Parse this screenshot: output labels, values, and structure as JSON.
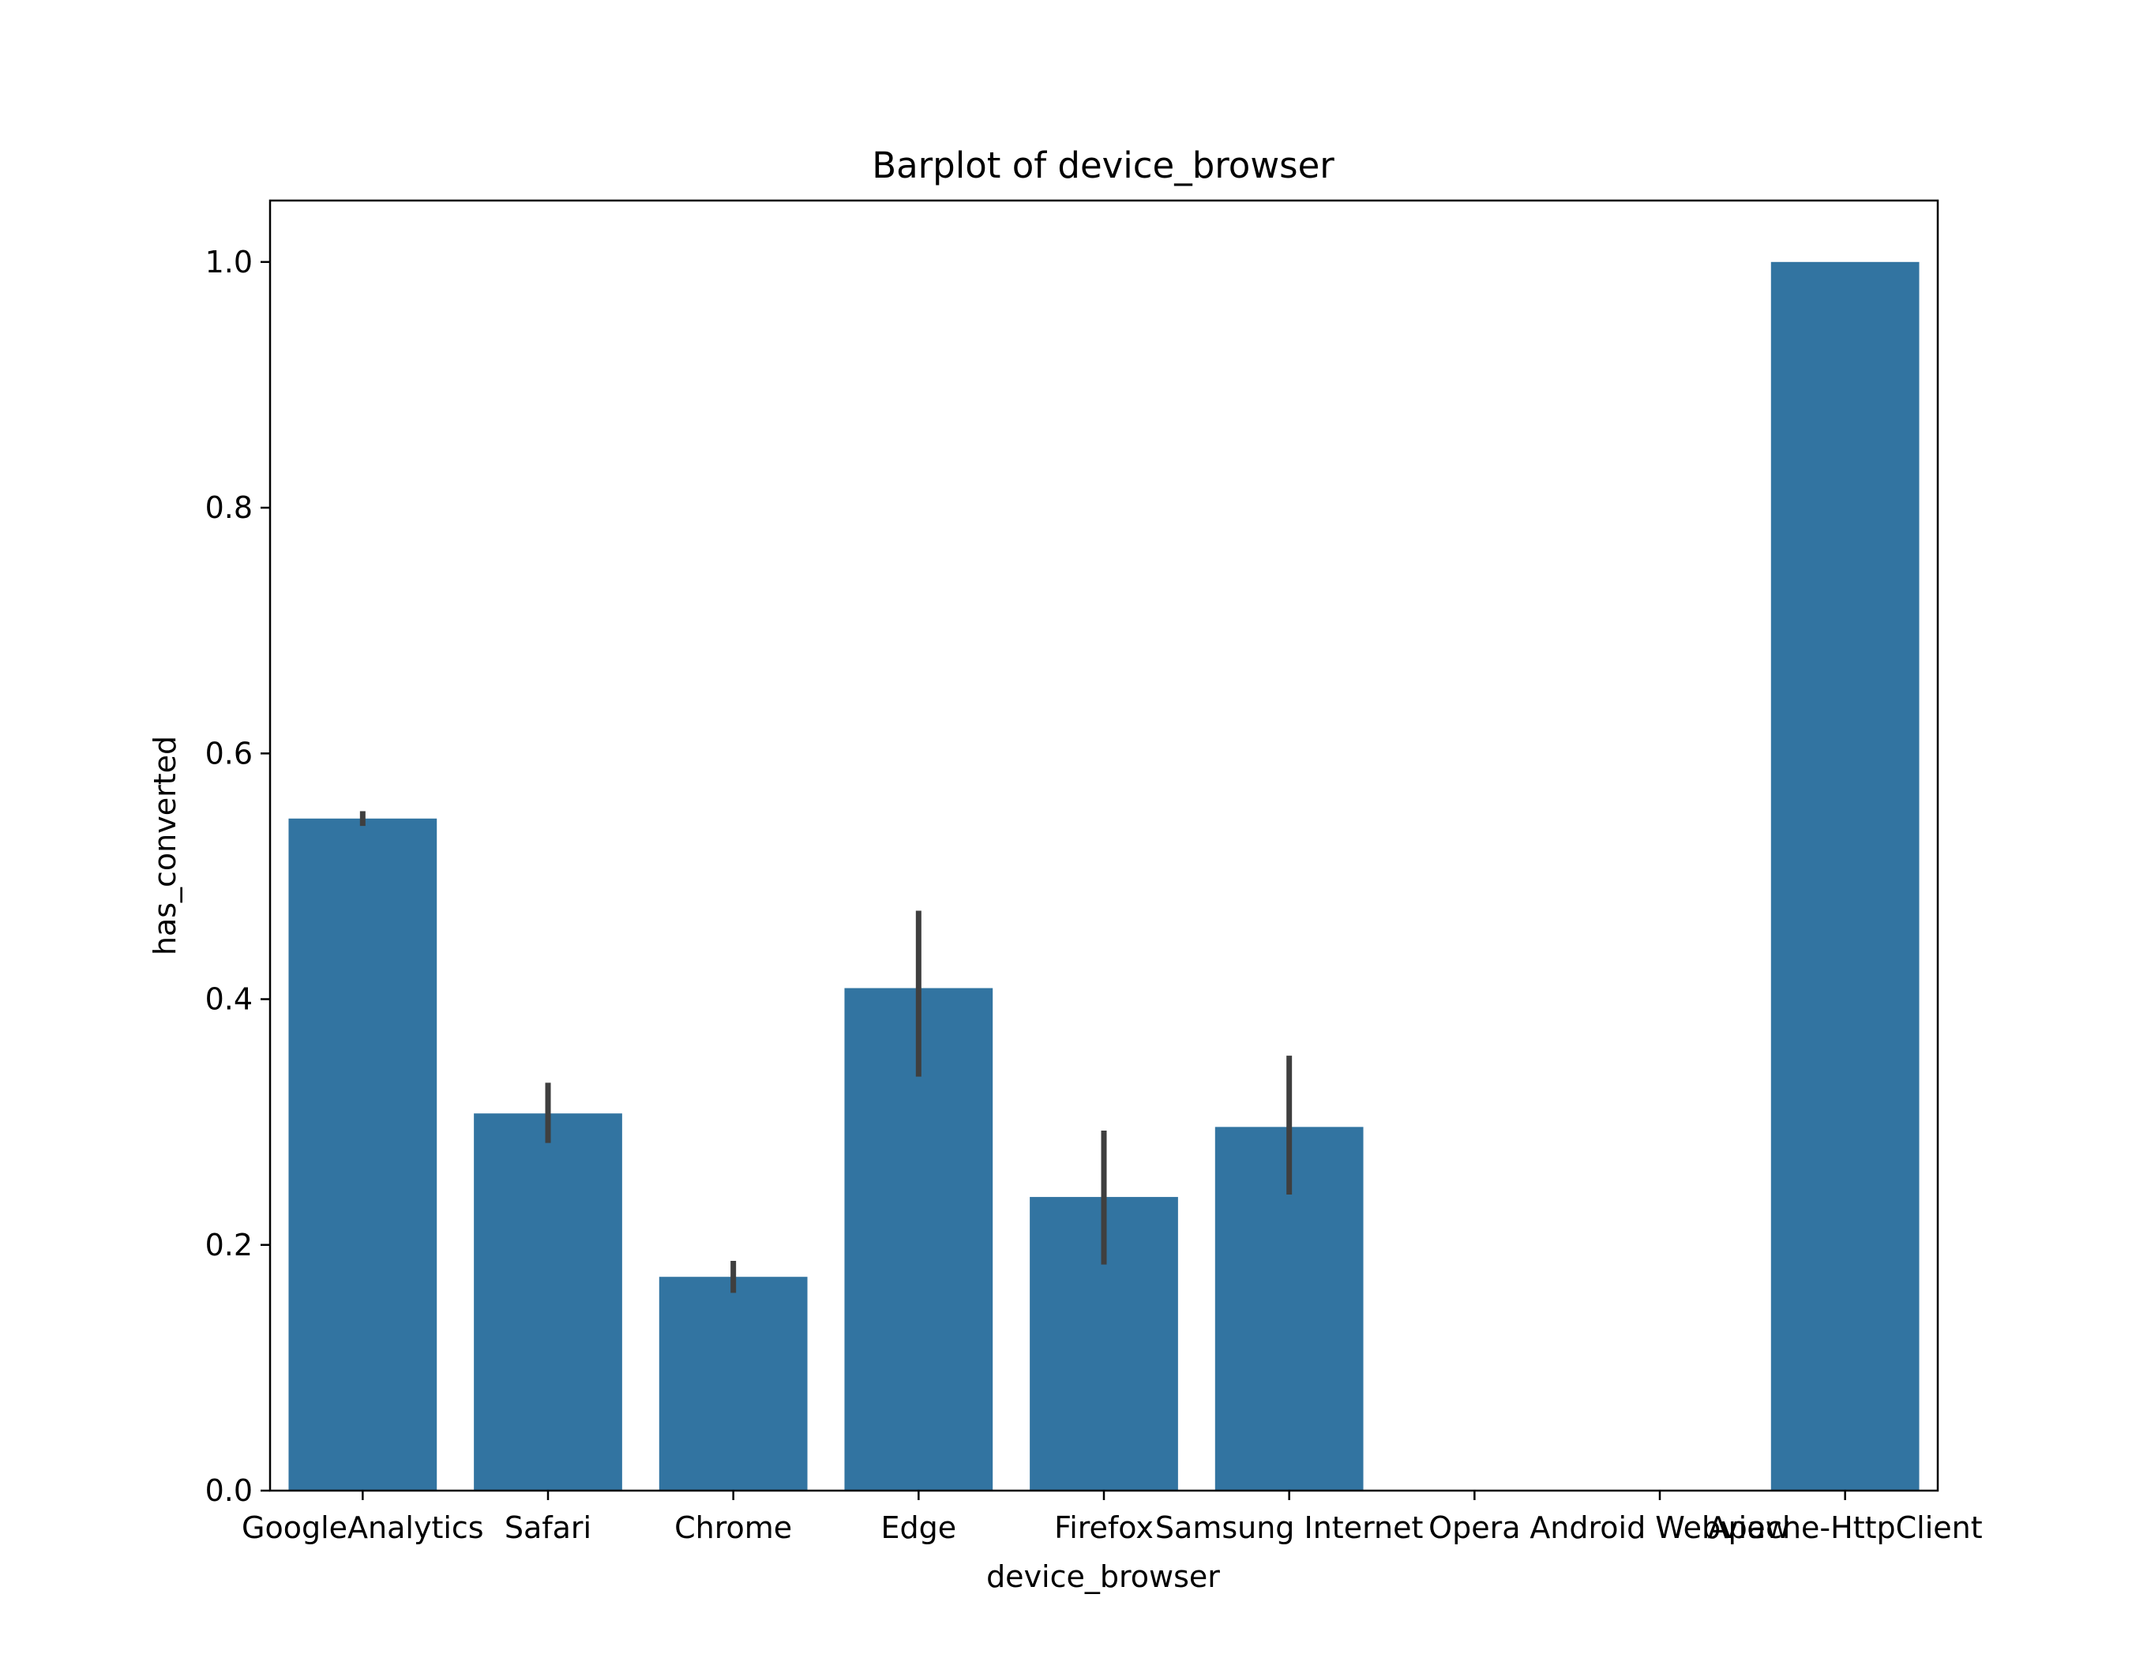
{
  "chart_data": {
    "type": "bar",
    "title": "Barplot of device_browser",
    "xlabel": "device_browser",
    "ylabel": "has_converted",
    "categories": [
      "GoogleAnalytics",
      "Safari",
      "Chrome",
      "Edge",
      "Firefox",
      "Samsung Internet",
      "Opera",
      "Android Webview",
      "Apache-HttpClient"
    ],
    "values": [
      0.547,
      0.307,
      0.174,
      0.409,
      0.239,
      0.296,
      0.0,
      0.0,
      1.0
    ],
    "error_bars": [
      [
        0.541,
        0.553
      ],
      [
        0.283,
        0.332
      ],
      [
        0.161,
        0.187
      ],
      [
        0.337,
        0.472
      ],
      [
        0.184,
        0.293
      ],
      [
        0.241,
        0.354
      ],
      null,
      null,
      null
    ],
    "ylim": [
      0,
      1.05
    ],
    "yticks": [
      0.0,
      0.2,
      0.4,
      0.6,
      0.8,
      1.0
    ],
    "ytick_labels": [
      "0.0",
      "0.2",
      "0.4",
      "0.6",
      "0.8",
      "1.0"
    ],
    "grid": false,
    "legend": "none",
    "bar_color": "#3274a1",
    "error_color": "#3f3f3f"
  }
}
